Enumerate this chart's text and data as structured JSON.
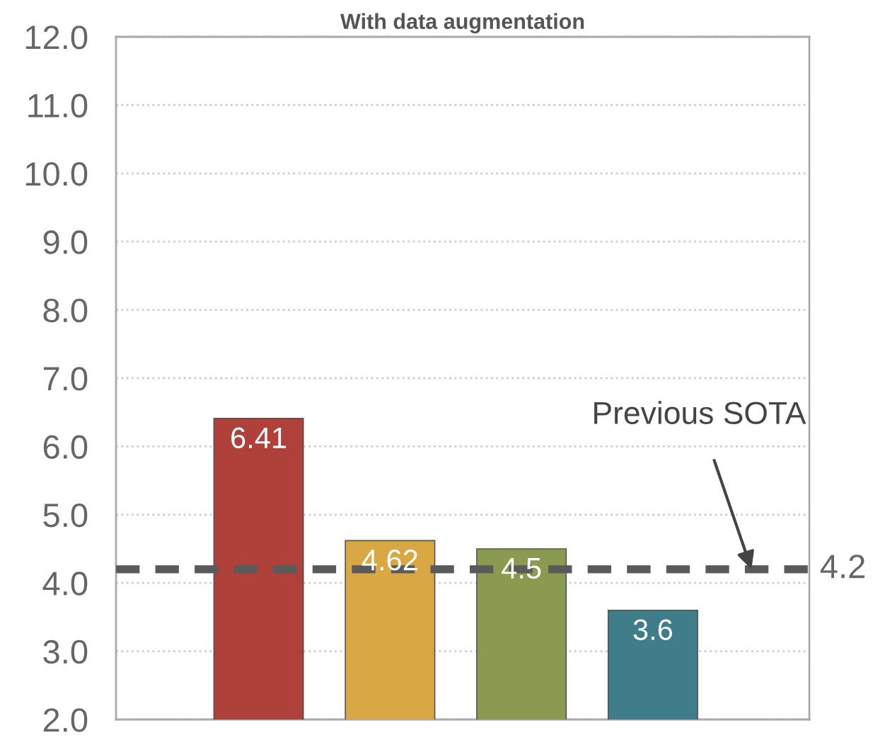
{
  "chart_data": {
    "type": "bar",
    "title": "With data augmentation",
    "categories": [
      null,
      null,
      null,
      null
    ],
    "values": [
      6.41,
      4.62,
      4.5,
      3.6
    ],
    "colors": [
      "#b0403a",
      "#d9a845",
      "#8a9a4f",
      "#3f7d8a"
    ],
    "data_labels": true,
    "ylim": [
      2.0,
      12.0
    ],
    "yticks": [
      {
        "value": 2,
        "label": "2.0"
      },
      {
        "value": 3,
        "label": "3.0"
      },
      {
        "value": 4,
        "label": "4.0"
      },
      {
        "value": 5,
        "label": "5.0"
      },
      {
        "value": 6,
        "label": "6.0"
      },
      {
        "value": 7,
        "label": "7.0"
      },
      {
        "value": 8,
        "label": "8.0"
      },
      {
        "value": 9,
        "label": "9.0"
      },
      {
        "value": 10,
        "label": "10.0"
      },
      {
        "value": 11,
        "label": "11.0"
      },
      {
        "value": 12,
        "label": "12.0"
      }
    ],
    "grid": "y",
    "ref_lines": [
      {
        "axis": "y",
        "value": 4.2,
        "label": "4.2",
        "color": "#5a5a5a",
        "line_style": "dashed"
      }
    ],
    "annotations": [
      "Previous SOTA"
    ]
  }
}
